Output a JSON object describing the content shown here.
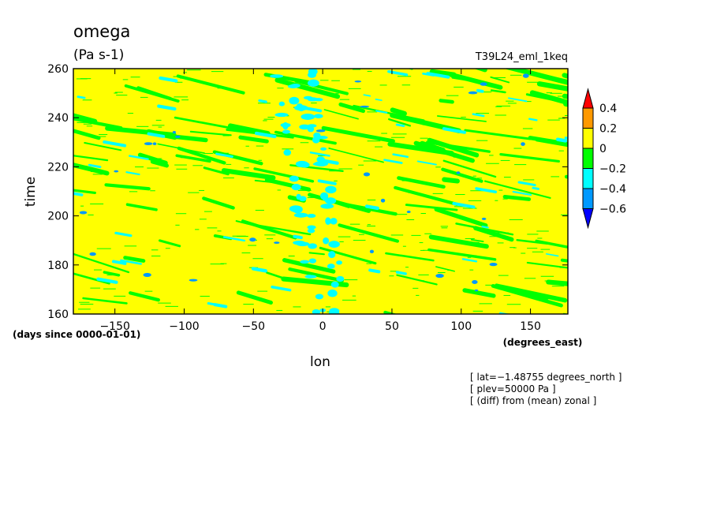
{
  "chart_data": {
    "type": "heatmap",
    "title": "omega",
    "units": "(Pa s-1)",
    "experiment": "T39L24_eml_1keq",
    "xlabel": "lon",
    "ylabel": "time",
    "x_units": "(degrees_east)",
    "y_units": "(days since 0000-01-01)",
    "xlim": [
      -180,
      177
    ],
    "ylim": [
      160,
      260
    ],
    "x_ticks": [
      -150,
      -100,
      -50,
      0,
      50,
      100,
      150
    ],
    "x_tick_labels": [
      "−150",
      "−100",
      "−50",
      "0",
      "50",
      "100",
      "150"
    ],
    "y_ticks": [
      160,
      180,
      200,
      220,
      240,
      260
    ],
    "y_tick_labels": [
      "160",
      "180",
      "200",
      "220",
      "240",
      "260"
    ],
    "legend_position": "right",
    "colorbar": {
      "levels": [
        0.4,
        0.2,
        0,
        -0.2,
        -0.4,
        -0.6
      ],
      "labels": [
        "0.4",
        "0.2",
        "0",
        "−0.2",
        "−0.4",
        "−0.6"
      ],
      "bins": [
        {
          "range": ">0.4",
          "color": "#ff0000"
        },
        {
          "range": "0.2 to 0.4",
          "color": "#ff9900"
        },
        {
          "range": "0 to 0.2",
          "color": "#ffff00"
        },
        {
          "range": "-0.2 to 0",
          "color": "#00ff00"
        },
        {
          "range": "-0.4 to -0.2",
          "color": "#00ffff"
        },
        {
          "range": "-0.6 to -0.4",
          "color": "#0099ff"
        },
        {
          "range": "<-0.6",
          "color": "#0000ff"
        }
      ]
    },
    "background_color": "#ffff00",
    "notes": [
      "[ lat=−1.48755 degrees_north ]",
      "[ plev=50000 Pa ]",
      "[ (diff) from (mean) zonal ]"
    ]
  }
}
